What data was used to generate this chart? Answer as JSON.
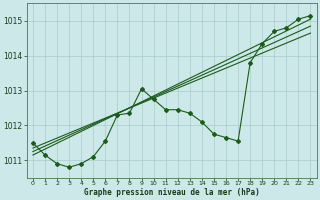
{
  "xlabel": "Graphe pression niveau de la mer (hPa)",
  "background_color": "#cce8e8",
  "grid_color": "#aacccc",
  "line_color": "#1a5c1a",
  "xlim": [
    -0.5,
    23.5
  ],
  "ylim": [
    1010.5,
    1015.5
  ],
  "yticks": [
    1011,
    1012,
    1013,
    1014,
    1015
  ],
  "xticks": [
    0,
    1,
    2,
    3,
    4,
    5,
    6,
    7,
    8,
    9,
    10,
    11,
    12,
    13,
    14,
    15,
    16,
    17,
    18,
    19,
    20,
    21,
    22,
    23
  ],
  "jagged_series": [
    1011.5,
    1011.15,
    1010.9,
    1010.8,
    1010.9,
    1011.1,
    1011.55,
    1012.3,
    1012.35,
    1013.05,
    1012.75,
    1012.45,
    1012.45,
    1012.35,
    1012.1,
    1011.75,
    1011.65,
    1011.55,
    1013.8,
    1014.35,
    1014.7,
    1014.8,
    1015.05,
    1015.15
  ],
  "trend_lines": [
    {
      "x": [
        0,
        23
      ],
      "y": [
        1011.15,
        1015.05
      ]
    },
    {
      "x": [
        0,
        23
      ],
      "y": [
        1011.25,
        1014.85
      ]
    },
    {
      "x": [
        0,
        23
      ],
      "y": [
        1011.35,
        1014.65
      ]
    }
  ]
}
